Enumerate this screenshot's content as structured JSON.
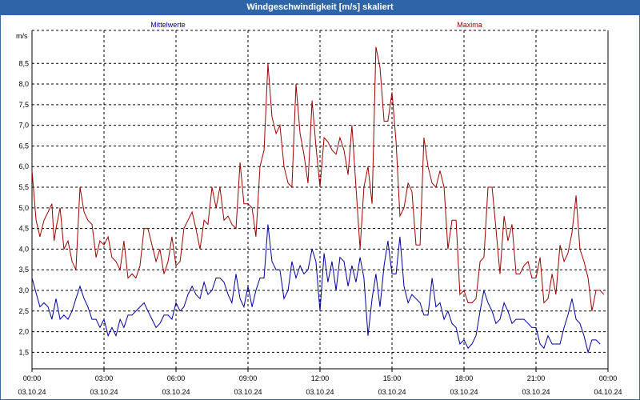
{
  "window": {
    "title": "Windgeschwindigkeit [m/s] skaliert"
  },
  "chart_data": {
    "type": "line",
    "title": "Windgeschwindigkeit [m/s] skaliert",
    "ylabel": "m/s",
    "xlabel": "",
    "ylim": [
      1.1,
      9.3
    ],
    "xlim": [
      0,
      24
    ],
    "grid": true,
    "yticks": [
      1.5,
      2.0,
      2.5,
      3.0,
      3.5,
      4.0,
      4.5,
      5.0,
      5.5,
      6.0,
      6.5,
      7.0,
      7.5,
      8.0,
      8.5
    ],
    "ytick_labels": [
      "1,5",
      "2,0",
      "2,5",
      "3,0",
      "3,5",
      "4,0",
      "4,5",
      "5,0",
      "5,5",
      "6,0",
      "6,5",
      "7,0",
      "7,5",
      "8,0",
      "8,5"
    ],
    "xticks": [
      0,
      3,
      6,
      9,
      12,
      15,
      18,
      21,
      24
    ],
    "xtick_labels": [
      {
        "time": "00:00",
        "date": "03.10.24"
      },
      {
        "time": "03:00",
        "date": "03.10.24"
      },
      {
        "time": "06:00",
        "date": "03.10.24"
      },
      {
        "time": "09:00",
        "date": "03.10.24"
      },
      {
        "time": "12:00",
        "date": "03.10.24"
      },
      {
        "time": "15:00",
        "date": "03.10.24"
      },
      {
        "time": "18:00",
        "date": "03.10.24"
      },
      {
        "time": "21:00",
        "date": "03.10.24"
      },
      {
        "time": "00:00",
        "date": "04.10.24"
      }
    ],
    "series": [
      {
        "name": "Mittelwerte",
        "color": "#0000a0",
        "points": [
          [
            0.0,
            3.3
          ],
          [
            0.33,
            2.6
          ],
          [
            0.5,
            2.7
          ],
          [
            0.67,
            2.6
          ],
          [
            0.83,
            2.3
          ],
          [
            1.0,
            2.8
          ],
          [
            1.17,
            2.3
          ],
          [
            1.33,
            2.4
          ],
          [
            1.5,
            2.3
          ],
          [
            1.67,
            2.5
          ],
          [
            1.83,
            2.8
          ],
          [
            2.0,
            3.1
          ],
          [
            2.17,
            2.8
          ],
          [
            2.33,
            2.6
          ],
          [
            2.5,
            2.3
          ],
          [
            2.67,
            2.3
          ],
          [
            2.83,
            2.1
          ],
          [
            3.0,
            2.3
          ],
          [
            3.17,
            1.9
          ],
          [
            3.33,
            2.1
          ],
          [
            3.5,
            1.9
          ],
          [
            3.67,
            2.3
          ],
          [
            3.83,
            2.1
          ],
          [
            4.0,
            2.4
          ],
          [
            4.17,
            2.4
          ],
          [
            4.33,
            2.5
          ],
          [
            4.5,
            2.6
          ],
          [
            4.67,
            2.7
          ],
          [
            4.83,
            2.5
          ],
          [
            5.0,
            2.3
          ],
          [
            5.17,
            2.1
          ],
          [
            5.33,
            2.2
          ],
          [
            5.5,
            2.4
          ],
          [
            5.67,
            2.4
          ],
          [
            5.83,
            2.3
          ],
          [
            6.0,
            2.7
          ],
          [
            6.17,
            2.5
          ],
          [
            6.33,
            2.6
          ],
          [
            6.5,
            2.9
          ],
          [
            6.67,
            3.1
          ],
          [
            6.83,
            2.9
          ],
          [
            7.0,
            2.8
          ],
          [
            7.17,
            3.2
          ],
          [
            7.33,
            2.9
          ],
          [
            7.5,
            3.0
          ],
          [
            7.67,
            3.3
          ],
          [
            7.83,
            3.3
          ],
          [
            8.0,
            3.2
          ],
          [
            8.17,
            2.9
          ],
          [
            8.33,
            2.7
          ],
          [
            8.5,
            3.4
          ],
          [
            8.67,
            2.8
          ],
          [
            8.83,
            2.6
          ],
          [
            9.0,
            3.1
          ],
          [
            9.17,
            2.6
          ],
          [
            9.33,
            3.0
          ],
          [
            9.5,
            3.3
          ],
          [
            9.67,
            3.3
          ],
          [
            9.83,
            4.6
          ],
          [
            10.0,
            3.7
          ],
          [
            10.17,
            3.5
          ],
          [
            10.33,
            3.5
          ],
          [
            10.5,
            2.8
          ],
          [
            10.67,
            3.0
          ],
          [
            10.83,
            3.7
          ],
          [
            11.0,
            3.3
          ],
          [
            11.17,
            3.6
          ],
          [
            11.33,
            3.4
          ],
          [
            11.5,
            3.5
          ],
          [
            11.67,
            4.0
          ],
          [
            11.83,
            3.7
          ],
          [
            12.0,
            2.5
          ],
          [
            12.17,
            3.9
          ],
          [
            12.33,
            3.2
          ],
          [
            12.5,
            3.7
          ],
          [
            12.67,
            3.0
          ],
          [
            12.83,
            3.8
          ],
          [
            13.0,
            3.7
          ],
          [
            13.17,
            3.1
          ],
          [
            13.33,
            3.6
          ],
          [
            13.5,
            3.2
          ],
          [
            13.67,
            3.8
          ],
          [
            13.83,
            3.3
          ],
          [
            14.0,
            1.9
          ],
          [
            14.17,
            2.8
          ],
          [
            14.33,
            3.4
          ],
          [
            14.5,
            2.6
          ],
          [
            14.67,
            3.6
          ],
          [
            14.83,
            4.2
          ],
          [
            15.0,
            3.4
          ],
          [
            15.17,
            3.4
          ],
          [
            15.33,
            4.3
          ],
          [
            15.5,
            3.1
          ],
          [
            15.67,
            2.7
          ],
          [
            15.83,
            2.9
          ],
          [
            16.0,
            2.8
          ],
          [
            16.17,
            2.7
          ],
          [
            16.33,
            2.4
          ],
          [
            16.5,
            2.4
          ],
          [
            16.67,
            3.3
          ],
          [
            16.83,
            2.6
          ],
          [
            17.0,
            2.7
          ],
          [
            17.17,
            2.3
          ],
          [
            17.33,
            2.5
          ],
          [
            17.5,
            2.2
          ],
          [
            17.67,
            2.1
          ],
          [
            17.83,
            1.7
          ],
          [
            18.0,
            1.8
          ],
          [
            18.17,
            1.6
          ],
          [
            18.33,
            1.7
          ],
          [
            18.5,
            1.9
          ],
          [
            18.67,
            2.5
          ],
          [
            18.83,
            3.0
          ],
          [
            19.0,
            2.7
          ],
          [
            19.17,
            2.5
          ],
          [
            19.33,
            2.2
          ],
          [
            19.5,
            2.3
          ],
          [
            19.67,
            2.7
          ],
          [
            19.83,
            2.5
          ],
          [
            20.0,
            2.2
          ],
          [
            20.17,
            2.3
          ],
          [
            20.33,
            2.3
          ],
          [
            20.5,
            2.3
          ],
          [
            20.67,
            2.2
          ],
          [
            20.83,
            2.1
          ],
          [
            21.0,
            2.1
          ],
          [
            21.17,
            1.7
          ],
          [
            21.33,
            1.6
          ],
          [
            21.5,
            1.9
          ],
          [
            21.67,
            1.7
          ],
          [
            21.83,
            1.7
          ],
          [
            22.0,
            1.7
          ],
          [
            22.17,
            2.1
          ],
          [
            22.33,
            2.4
          ],
          [
            22.5,
            2.8
          ],
          [
            22.67,
            2.3
          ],
          [
            22.83,
            2.2
          ],
          [
            23.0,
            1.9
          ],
          [
            23.17,
            1.5
          ],
          [
            23.33,
            1.8
          ],
          [
            23.5,
            1.8
          ],
          [
            23.67,
            1.7
          ]
        ]
      },
      {
        "name": "Maxima",
        "color": "#a00000",
        "points": [
          [
            0.0,
            5.9
          ],
          [
            0.17,
            4.7
          ],
          [
            0.33,
            4.3
          ],
          [
            0.5,
            4.7
          ],
          [
            0.67,
            4.9
          ],
          [
            0.83,
            5.1
          ],
          [
            0.92,
            4.2
          ],
          [
            1.0,
            4.5
          ],
          [
            1.17,
            5.0
          ],
          [
            1.33,
            4.0
          ],
          [
            1.5,
            4.2
          ],
          [
            1.67,
            3.7
          ],
          [
            1.83,
            3.5
          ],
          [
            2.0,
            5.5
          ],
          [
            2.17,
            4.9
          ],
          [
            2.33,
            4.7
          ],
          [
            2.5,
            4.6
          ],
          [
            2.67,
            3.8
          ],
          [
            2.83,
            4.2
          ],
          [
            3.0,
            4.1
          ],
          [
            3.17,
            4.3
          ],
          [
            3.33,
            3.8
          ],
          [
            3.5,
            3.7
          ],
          [
            3.67,
            3.5
          ],
          [
            3.83,
            4.2
          ],
          [
            4.0,
            3.3
          ],
          [
            4.17,
            3.4
          ],
          [
            4.33,
            3.3
          ],
          [
            4.5,
            3.6
          ],
          [
            4.67,
            4.5
          ],
          [
            4.83,
            4.5
          ],
          [
            5.0,
            4.1
          ],
          [
            5.17,
            3.7
          ],
          [
            5.33,
            4.0
          ],
          [
            5.5,
            3.4
          ],
          [
            5.67,
            3.7
          ],
          [
            5.83,
            4.3
          ],
          [
            6.0,
            3.6
          ],
          [
            6.17,
            3.7
          ],
          [
            6.33,
            4.5
          ],
          [
            6.5,
            4.7
          ],
          [
            6.67,
            4.9
          ],
          [
            6.83,
            4.5
          ],
          [
            7.0,
            4.0
          ],
          [
            7.17,
            4.7
          ],
          [
            7.33,
            4.6
          ],
          [
            7.5,
            5.5
          ],
          [
            7.67,
            5.0
          ],
          [
            7.83,
            5.5
          ],
          [
            8.0,
            4.7
          ],
          [
            8.17,
            4.8
          ],
          [
            8.33,
            4.6
          ],
          [
            8.5,
            4.5
          ],
          [
            8.67,
            6.1
          ],
          [
            8.83,
            5.1
          ],
          [
            9.0,
            5.1
          ],
          [
            9.17,
            5.0
          ],
          [
            9.33,
            4.3
          ],
          [
            9.5,
            6.0
          ],
          [
            9.67,
            6.4
          ],
          [
            9.83,
            8.5
          ],
          [
            10.0,
            7.2
          ],
          [
            10.17,
            6.8
          ],
          [
            10.33,
            7.0
          ],
          [
            10.5,
            6.0
          ],
          [
            10.67,
            5.6
          ],
          [
            10.83,
            5.5
          ],
          [
            11.0,
            8.0
          ],
          [
            11.17,
            6.8
          ],
          [
            11.33,
            6.3
          ],
          [
            11.5,
            5.6
          ],
          [
            11.67,
            7.6
          ],
          [
            11.83,
            6.5
          ],
          [
            12.0,
            5.5
          ],
          [
            12.17,
            6.7
          ],
          [
            12.33,
            6.6
          ],
          [
            12.5,
            6.4
          ],
          [
            12.67,
            6.3
          ],
          [
            12.83,
            6.7
          ],
          [
            13.0,
            6.4
          ],
          [
            13.17,
            5.8
          ],
          [
            13.33,
            7.0
          ],
          [
            13.5,
            5.5
          ],
          [
            13.67,
            4.0
          ],
          [
            13.83,
            5.5
          ],
          [
            14.0,
            6.0
          ],
          [
            14.17,
            5.1
          ],
          [
            14.33,
            8.9
          ],
          [
            14.5,
            8.4
          ],
          [
            14.67,
            7.1
          ],
          [
            14.83,
            7.1
          ],
          [
            15.0,
            7.8
          ],
          [
            15.17,
            6.6
          ],
          [
            15.33,
            4.8
          ],
          [
            15.5,
            5.0
          ],
          [
            15.67,
            5.6
          ],
          [
            15.83,
            5.4
          ],
          [
            16.0,
            4.1
          ],
          [
            16.17,
            4.1
          ],
          [
            16.33,
            6.7
          ],
          [
            16.5,
            6.0
          ],
          [
            16.67,
            5.6
          ],
          [
            16.83,
            5.5
          ],
          [
            17.0,
            5.9
          ],
          [
            17.17,
            5.5
          ],
          [
            17.33,
            4.0
          ],
          [
            17.5,
            4.7
          ],
          [
            17.67,
            4.7
          ],
          [
            17.83,
            2.9
          ],
          [
            18.0,
            3.0
          ],
          [
            18.17,
            2.7
          ],
          [
            18.33,
            2.7
          ],
          [
            18.5,
            2.8
          ],
          [
            18.67,
            3.7
          ],
          [
            18.83,
            3.8
          ],
          [
            19.0,
            5.5
          ],
          [
            19.17,
            5.5
          ],
          [
            19.33,
            4.5
          ],
          [
            19.5,
            3.4
          ],
          [
            19.67,
            4.8
          ],
          [
            19.83,
            4.2
          ],
          [
            20.0,
            4.6
          ],
          [
            20.17,
            3.4
          ],
          [
            20.33,
            3.4
          ],
          [
            20.5,
            3.6
          ],
          [
            20.67,
            3.7
          ],
          [
            20.83,
            3.3
          ],
          [
            21.0,
            3.3
          ],
          [
            21.17,
            3.8
          ],
          [
            21.33,
            2.7
          ],
          [
            21.5,
            2.8
          ],
          [
            21.67,
            3.4
          ],
          [
            21.83,
            2.9
          ],
          [
            22.0,
            4.1
          ],
          [
            22.17,
            3.7
          ],
          [
            22.33,
            3.9
          ],
          [
            22.5,
            4.4
          ],
          [
            22.67,
            5.3
          ],
          [
            22.83,
            4.0
          ],
          [
            23.0,
            3.7
          ],
          [
            23.17,
            3.3
          ],
          [
            23.33,
            2.5
          ],
          [
            23.5,
            3.0
          ],
          [
            23.67,
            3.0
          ],
          [
            23.83,
            2.9
          ]
        ]
      }
    ]
  }
}
